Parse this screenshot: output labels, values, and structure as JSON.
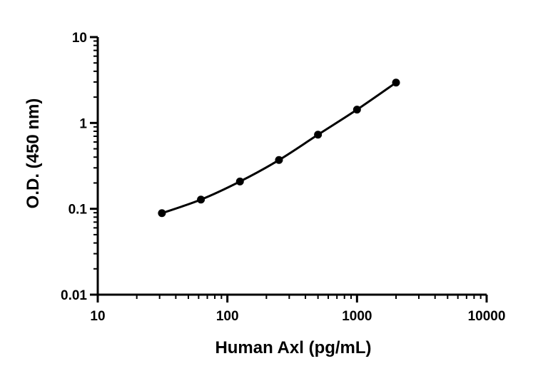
{
  "chart_data": {
    "type": "line",
    "title": "",
    "xlabel": "Human Axl (pg/mL)",
    "ylabel": "O.D. (450 nm)",
    "xscale": "log",
    "yscale": "log",
    "xlim": [
      10,
      10000
    ],
    "ylim": [
      0.01,
      10
    ],
    "x_ticks": [
      10,
      100,
      1000,
      10000
    ],
    "x_tick_labels": [
      "10",
      "100",
      "1000",
      "10000"
    ],
    "y_ticks": [
      0.01,
      0.1,
      1,
      10
    ],
    "y_tick_labels": [
      "0.01",
      "0.1",
      "1",
      "10"
    ],
    "grid": false,
    "legend": "none",
    "series": [
      {
        "x": [
          31.25,
          62.5,
          125,
          250,
          500,
          1000,
          2000
        ],
        "y": [
          0.089,
          0.128,
          0.208,
          0.37,
          0.73,
          1.43,
          2.95
        ],
        "marker": "circle",
        "fit_curve": true
      }
    ],
    "colors": {
      "line": "#000000",
      "marker": "#000000",
      "axis": "#000000"
    }
  }
}
